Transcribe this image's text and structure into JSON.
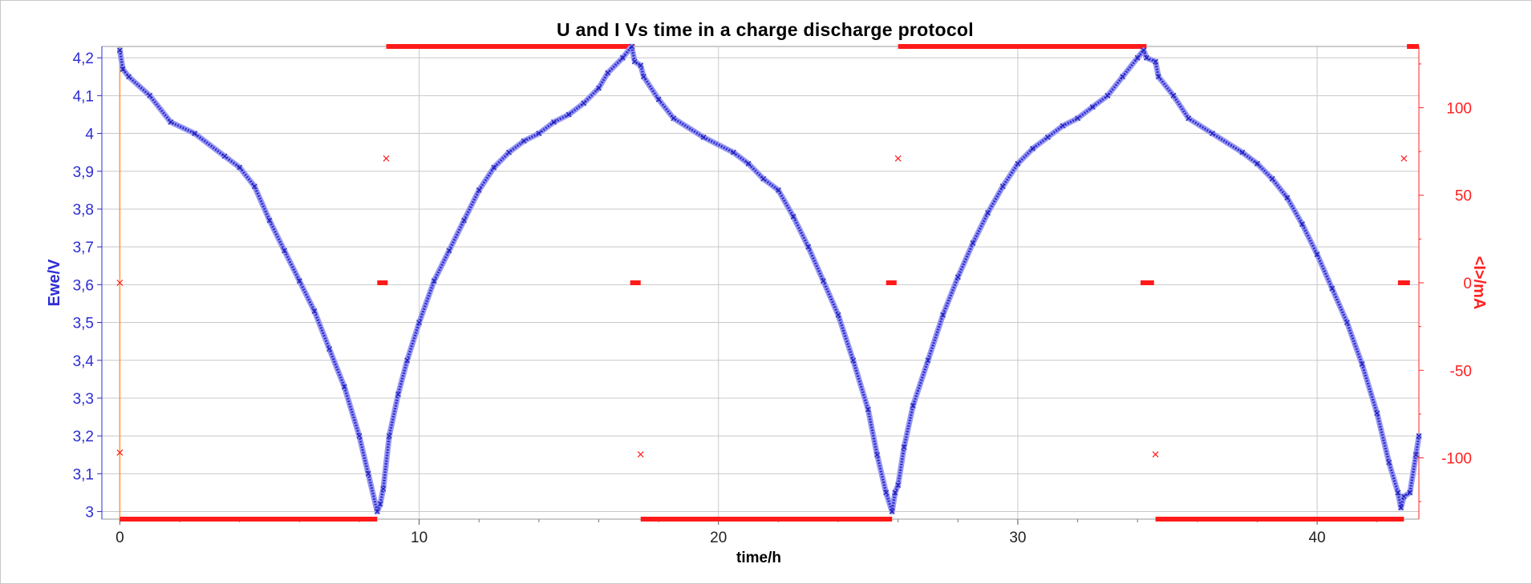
{
  "chart_data": {
    "type": "line",
    "title": "U and I Vs time in a charge discharge protocol",
    "xlabel": "time/h",
    "ylabel_left": "Ewe/V",
    "ylabel_right": "<I>/mA",
    "xlim": [
      -0.6,
      43.4
    ],
    "ylim_left": [
      2.98,
      4.23
    ],
    "ylim_right": [
      -135,
      135
    ],
    "x_ticks": [
      "0",
      "10",
      "20",
      "30",
      "40"
    ],
    "x_tick_values": [
      0,
      10,
      20,
      30,
      40
    ],
    "y_left_ticks": [
      "3",
      "3,1",
      "3,2",
      "3,3",
      "3,4",
      "3,5",
      "3,6",
      "3,7",
      "3,8",
      "3,9",
      "4",
      "4,1",
      "4,2"
    ],
    "y_left_tick_values": [
      3.0,
      3.1,
      3.2,
      3.3,
      3.4,
      3.5,
      3.6,
      3.7,
      3.8,
      3.9,
      4.0,
      4.1,
      4.2
    ],
    "y_right_ticks": [
      "100",
      "50",
      "0",
      "-50",
      "-100"
    ],
    "y_right_tick_values": [
      100,
      50,
      0,
      -50,
      -100
    ],
    "grid": true,
    "colors": {
      "voltage": "#2d2dd6",
      "current": "#ff1a1a",
      "cursor": "#ff9a33",
      "grid": "#c8c8c8"
    },
    "series": [
      {
        "name": "Ewe/V",
        "axis": "left",
        "points": [
          [
            0.0,
            4.22
          ],
          [
            0.1,
            4.17
          ],
          [
            0.3,
            4.15
          ],
          [
            1.0,
            4.1
          ],
          [
            1.7,
            4.03
          ],
          [
            2.5,
            4.0
          ],
          [
            3.5,
            3.94
          ],
          [
            4.0,
            3.91
          ],
          [
            4.5,
            3.86
          ],
          [
            5.0,
            3.77
          ],
          [
            5.5,
            3.69
          ],
          [
            6.0,
            3.61
          ],
          [
            6.5,
            3.53
          ],
          [
            7.0,
            3.43
          ],
          [
            7.5,
            3.33
          ],
          [
            8.0,
            3.2
          ],
          [
            8.3,
            3.1
          ],
          [
            8.6,
            3.0
          ],
          [
            8.7,
            3.02
          ],
          [
            8.8,
            3.06
          ],
          [
            9.0,
            3.2
          ],
          [
            9.3,
            3.31
          ],
          [
            9.6,
            3.4
          ],
          [
            10.0,
            3.5
          ],
          [
            10.5,
            3.61
          ],
          [
            11.0,
            3.69
          ],
          [
            11.5,
            3.77
          ],
          [
            12.0,
            3.85
          ],
          [
            12.5,
            3.91
          ],
          [
            13.0,
            3.95
          ],
          [
            13.5,
            3.98
          ],
          [
            14.0,
            4.0
          ],
          [
            14.5,
            4.03
          ],
          [
            15.0,
            4.05
          ],
          [
            15.5,
            4.08
          ],
          [
            16.0,
            4.12
          ],
          [
            16.3,
            4.16
          ],
          [
            16.8,
            4.2
          ],
          [
            17.1,
            4.23
          ],
          [
            17.2,
            4.19
          ],
          [
            17.4,
            4.18
          ],
          [
            17.5,
            4.15
          ],
          [
            18.0,
            4.09
          ],
          [
            18.5,
            4.04
          ],
          [
            19.5,
            3.99
          ],
          [
            20.5,
            3.95
          ],
          [
            21.0,
            3.92
          ],
          [
            21.5,
            3.88
          ],
          [
            22.0,
            3.85
          ],
          [
            22.5,
            3.78
          ],
          [
            23.0,
            3.7
          ],
          [
            23.5,
            3.61
          ],
          [
            24.0,
            3.52
          ],
          [
            24.5,
            3.4
          ],
          [
            25.0,
            3.27
          ],
          [
            25.3,
            3.15
          ],
          [
            25.6,
            3.05
          ],
          [
            25.8,
            3.0
          ],
          [
            25.9,
            3.05
          ],
          [
            26.0,
            3.07
          ],
          [
            26.2,
            3.17
          ],
          [
            26.5,
            3.28
          ],
          [
            27.0,
            3.4
          ],
          [
            27.5,
            3.52
          ],
          [
            28.0,
            3.62
          ],
          [
            28.5,
            3.71
          ],
          [
            29.0,
            3.79
          ],
          [
            29.5,
            3.86
          ],
          [
            30.0,
            3.92
          ],
          [
            30.5,
            3.96
          ],
          [
            31.0,
            3.99
          ],
          [
            31.5,
            4.02
          ],
          [
            32.0,
            4.04
          ],
          [
            32.5,
            4.07
          ],
          [
            33.0,
            4.1
          ],
          [
            33.5,
            4.15
          ],
          [
            34.0,
            4.2
          ],
          [
            34.2,
            4.22
          ],
          [
            34.3,
            4.2
          ],
          [
            34.6,
            4.19
          ],
          [
            34.7,
            4.15
          ],
          [
            35.2,
            4.1
          ],
          [
            35.7,
            4.04
          ],
          [
            36.5,
            4.0
          ],
          [
            37.5,
            3.95
          ],
          [
            38.0,
            3.92
          ],
          [
            38.5,
            3.88
          ],
          [
            39.0,
            3.83
          ],
          [
            39.5,
            3.76
          ],
          [
            40.0,
            3.68
          ],
          [
            40.5,
            3.59
          ],
          [
            41.0,
            3.5
          ],
          [
            41.5,
            3.39
          ],
          [
            42.0,
            3.26
          ],
          [
            42.4,
            3.13
          ],
          [
            42.7,
            3.05
          ],
          [
            42.8,
            3.01
          ],
          [
            42.9,
            3.04
          ],
          [
            43.1,
            3.05
          ],
          [
            43.3,
            3.15
          ],
          [
            43.4,
            3.2
          ]
        ]
      },
      {
        "name": "<I>/mA",
        "axis": "right",
        "segments": [
          [
            [
              0.0,
              -135
            ],
            [
              8.6,
              -135
            ]
          ],
          [
            [
              8.9,
              135
            ],
            [
              17.2,
              135
            ]
          ],
          [
            [
              17.4,
              -135
            ],
            [
              25.8,
              -135
            ]
          ],
          [
            [
              26.0,
              135
            ],
            [
              34.3,
              135
            ]
          ],
          [
            [
              34.6,
              -135
            ],
            [
              42.9,
              -135
            ]
          ],
          [
            [
              43.0,
              135
            ],
            [
              43.4,
              135
            ]
          ],
          [
            [
              8.6,
              0
            ],
            [
              8.95,
              0
            ]
          ],
          [
            [
              17.05,
              0
            ],
            [
              17.4,
              0
            ]
          ],
          [
            [
              25.6,
              0
            ],
            [
              25.95,
              0
            ]
          ],
          [
            [
              34.1,
              0
            ],
            [
              34.55,
              0
            ]
          ],
          [
            [
              42.7,
              0
            ],
            [
              43.1,
              0
            ]
          ]
        ],
        "markers": [
          [
            0.0,
            0
          ],
          [
            0.0,
            -97
          ],
          [
            8.9,
            71
          ],
          [
            17.4,
            -98
          ],
          [
            26.0,
            71
          ],
          [
            34.6,
            -98
          ],
          [
            42.9,
            71
          ]
        ]
      }
    ]
  }
}
